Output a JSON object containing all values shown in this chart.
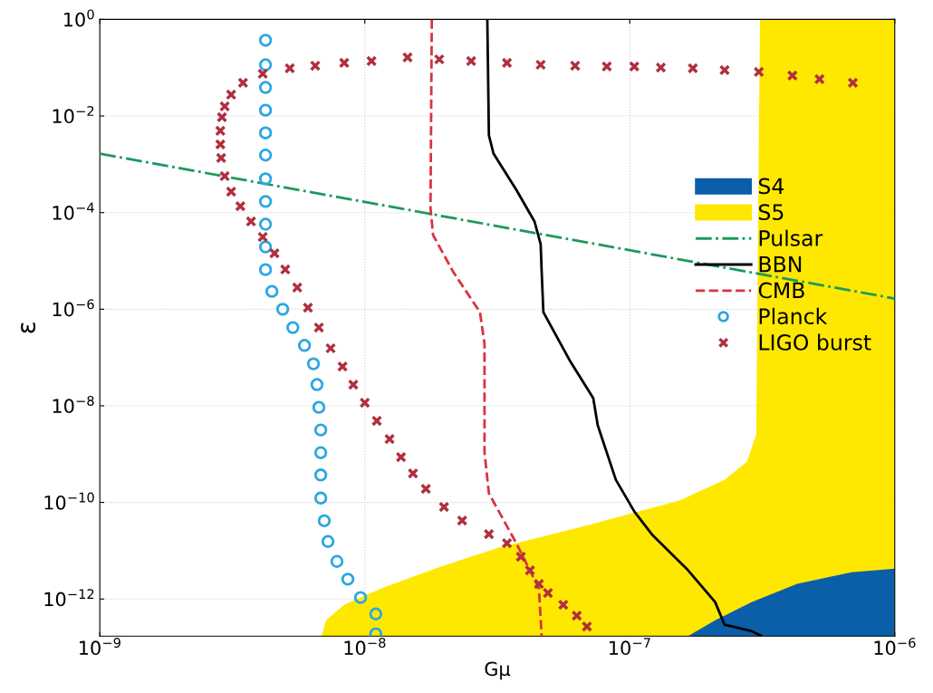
{
  "chart_data": {
    "type": "line",
    "xlabel": "Gμ",
    "ylabel": "ε",
    "log": "xy",
    "grid": true,
    "legend": "right",
    "xlim": [
      1e-09,
      1e-06
    ],
    "ylim": [
      1.7e-13,
      1
    ],
    "xticks": [
      {
        "value": 1e-09,
        "label": "10$^{−9}$"
      },
      {
        "value": 1e-08,
        "label": "10$^{−8}$"
      },
      {
        "value": 1e-07,
        "label": "10$^{−7}$"
      },
      {
        "value": 1e-06,
        "label": "10$^{−6}$"
      }
    ],
    "yticks": [
      {
        "value": 1e-12,
        "label": "10$^{−12}$"
      },
      {
        "value": 1e-10,
        "label": "10$^{−10}$"
      },
      {
        "value": 1e-08,
        "label": "10$^{−8}$"
      },
      {
        "value": 1e-06,
        "label": "10$^{−6}$"
      },
      {
        "value": 0.0001,
        "label": "10$^{−4}$"
      },
      {
        "value": 0.01,
        "label": "10$^{−2}$"
      },
      {
        "value": 1,
        "label": "10$^{0}$"
      }
    ],
    "series": [
      {
        "name": "S4",
        "type": "area",
        "color": "#0b5ea8",
        "x": [
          1.66e-07,
          2.1e-07,
          2.88e-07,
          4.28e-07,
          6.85e-07,
          1e-06
        ],
        "values": [
          1.7e-13,
          3.64e-13,
          8.63e-13,
          2.05e-12,
          3.59e-12,
          4.27e-12
        ]
      },
      {
        "name": "S5",
        "type": "area",
        "color": "#ffe800",
        "x": [
          6.87e-09,
          7.14e-09,
          8.36e-09,
          1.15e-08,
          1.84e-08,
          3.18e-08,
          7e-08,
          1.54e-07,
          2.28e-07,
          2.77e-07,
          3e-07,
          3.1e-07,
          1e-06
        ],
        "values": [
          1.7e-13,
          3.64e-13,
          7.59e-13,
          1.65e-12,
          4.27e-12,
          1.15e-11,
          3.4e-11,
          1.09e-10,
          2.94e-10,
          6.98e-10,
          2.55e-09,
          1,
          1
        ]
      },
      {
        "name": "Pulsar",
        "color": "#1b9a5c",
        "line_style": "dashdot",
        "x": [
          1e-09,
          1e-06
        ],
        "values": [
          0.00166,
          1.66e-06
        ]
      },
      {
        "name": "BBN",
        "color": "#000000",
        "line_style": "solid",
        "x": [
          2.9e-08,
          2.94e-08,
          3.06e-08,
          3.73e-08,
          4.37e-08,
          4.61e-08,
          4.65e-08,
          4.72e-08,
          5.98e-08,
          7.28e-08,
          7.57e-08,
          8.86e-08,
          1.04e-07,
          1.21e-07,
          1.66e-07,
          2.1e-07,
          2.28e-07,
          2.88e-07,
          3.12e-07
        ],
        "values": [
          1,
          0.00398,
          0.00167,
          0.000297,
          6.55e-05,
          2.22e-05,
          6.08e-06,
          8.7e-07,
          8.09e-08,
          1.44e-08,
          3.94e-09,
          2.94e-10,
          6.49e-11,
          2.2e-11,
          3.92e-12,
          8.63e-13,
          2.93e-13,
          2.17e-13,
          1.74e-13
        ]
      },
      {
        "name": "CMB",
        "color": "#d9343f",
        "line_style": "dashed",
        "x": [
          1.79e-08,
          1.77e-08,
          1.81e-08,
          2.15e-08,
          2.72e-08,
          2.83e-08,
          2.83e-08,
          2.94e-08,
          3.73e-08,
          4.54e-08,
          4.65e-08
        ],
        "values": [
          1,
          0.000125,
          3.43e-05,
          6.08e-06,
          8.7e-07,
          1.92e-07,
          1.08e-09,
          1.54e-10,
          1.43e-11,
          1.65e-12,
          1.7e-13
        ]
      },
      {
        "name": "Planck",
        "type": "scatter",
        "color": "#2aa8e0",
        "marker": "circle",
        "x": [
          4.22e-09,
          4.22e-09,
          4.22e-09,
          4.22e-09,
          4.22e-09,
          4.22e-09,
          4.22e-09,
          4.22e-09,
          4.22e-09,
          4.22e-09,
          4.22e-09,
          4.46e-09,
          4.9e-09,
          5.35e-09,
          5.92e-09,
          6.4e-09,
          6.6e-09,
          6.71e-09,
          6.82e-09,
          6.82e-09,
          6.82e-09,
          6.82e-09,
          7.03e-09,
          7.26e-09,
          7.85e-09,
          8.63e-09,
          9.64e-09,
          1.1e-08,
          1.1e-08
        ],
        "values": [
          0.37,
          0.115,
          0.039,
          0.0132,
          0.00447,
          0.00155,
          0.0005,
          0.00017,
          5.75e-05,
          1.95e-05,
          6.6e-06,
          2.34e-06,
          1e-06,
          4.17e-07,
          1.78e-07,
          7.4e-08,
          2.75e-08,
          9.3e-09,
          3.16e-09,
          1.07e-09,
          3.7e-10,
          1.23e-10,
          4.17e-11,
          1.55e-11,
          6e-12,
          2.57e-12,
          1.07e-12,
          4.9e-13,
          1.9e-13
        ]
      },
      {
        "name": "LIGO burst",
        "type": "scatter",
        "color": "#b0303f",
        "marker": "cross",
        "x": [
          6.95e-07,
          5.2e-07,
          4.11e-07,
          3.07e-07,
          2.28e-07,
          1.73e-07,
          1.31e-07,
          1.04e-07,
          8.19e-08,
          6.22e-08,
          4.61e-08,
          3.44e-08,
          2.52e-08,
          1.91e-08,
          1.45e-08,
          1.06e-08,
          8.36e-09,
          6.5e-09,
          5.21e-09,
          4.12e-09,
          3.47e-09,
          3.13e-09,
          2.96e-09,
          2.89e-09,
          2.85e-09,
          2.85e-09,
          2.87e-09,
          2.96e-09,
          3.13e-09,
          3.39e-09,
          3.72e-09,
          4.12e-09,
          4.56e-09,
          5.01e-09,
          5.56e-09,
          6.1e-09,
          6.71e-09,
          7.43e-09,
          8.24e-09,
          9.05e-09,
          1e-08,
          1.11e-08,
          1.24e-08,
          1.37e-08,
          1.52e-08,
          1.7e-08,
          1.99e-08,
          2.33e-08,
          2.94e-08,
          3.44e-08,
          3.88e-08,
          4.2e-08,
          4.54e-08,
          4.91e-08,
          5.61e-08,
          6.31e-08,
          6.89e-08
        ],
        "values": [
          0.0486,
          0.0578,
          0.0687,
          0.0817,
          0.089,
          0.097,
          0.101,
          0.106,
          0.106,
          0.11,
          0.115,
          0.126,
          0.137,
          0.149,
          0.163,
          0.137,
          0.126,
          0.11,
          0.097,
          0.0748,
          0.0486,
          0.0277,
          0.0158,
          0.00942,
          0.00492,
          0.00258,
          0.00135,
          0.000568,
          0.000272,
          0.000136,
          6.55e-05,
          3.14e-05,
          1.44e-05,
          6.64e-06,
          2.8e-06,
          1.08e-06,
          4.18e-07,
          1.55e-07,
          6.52e-08,
          2.75e-08,
          1.16e-08,
          4.89e-09,
          2.06e-09,
          8.67e-10,
          3.98e-10,
          1.91e-10,
          8.05e-11,
          4.22e-11,
          2.2e-11,
          1.43e-11,
          7.48e-12,
          3.92e-12,
          2.05e-12,
          1.33e-12,
          7.59e-13,
          4.52e-13,
          2.69e-13
        ]
      }
    ]
  }
}
